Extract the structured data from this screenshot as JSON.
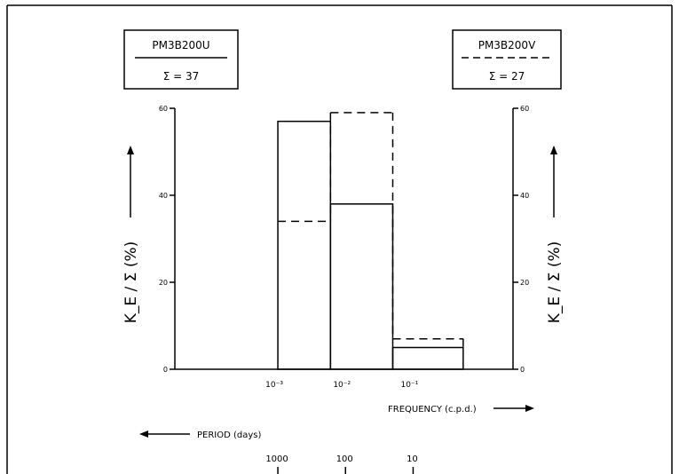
{
  "chart_data": {
    "type": "bar",
    "bar_style": "step-histogram",
    "x_scale": "log",
    "xlabel": "FREQUENCY (c.p.d.)",
    "x_secondary_label": "PERIOD (days)",
    "ylabel_left": "K_E / Σ (%)",
    "ylabel_right": "K_E / Σ (%)",
    "ylim": [
      0,
      60
    ],
    "y_ticks": [
      "0",
      "20",
      "40",
      "60"
    ],
    "x_ticks": [
      {
        "value": 0.001,
        "label": "10⁻³"
      },
      {
        "value": 0.01,
        "label": "10⁻²"
      },
      {
        "value": 0.1,
        "label": "10⁻¹"
      }
    ],
    "period_ticks": [
      {
        "value": 0.001,
        "label": "1000"
      },
      {
        "value": 0.01,
        "label": "100"
      },
      {
        "value": 0.1,
        "label": "10"
      }
    ],
    "x_axis_range": [
      3e-05,
      3
    ],
    "bins": [
      {
        "from": 0.001,
        "to": 0.006
      },
      {
        "from": 0.006,
        "to": 0.05
      },
      {
        "from": 0.05,
        "to": 0.55
      }
    ],
    "series": [
      {
        "name": "PM3B200U",
        "line_style": "solid",
        "values": [
          57,
          38,
          5
        ]
      },
      {
        "name": "PM3B200V",
        "line_style": "dashed",
        "values": [
          34,
          59,
          7
        ]
      }
    ],
    "legend": [
      {
        "name": "PM3B200U",
        "line_style": "solid",
        "sum_label": "Σ = 37"
      },
      {
        "name": "PM3B200V",
        "line_style": "dashed",
        "sum_label": "Σ = 27"
      }
    ]
  }
}
